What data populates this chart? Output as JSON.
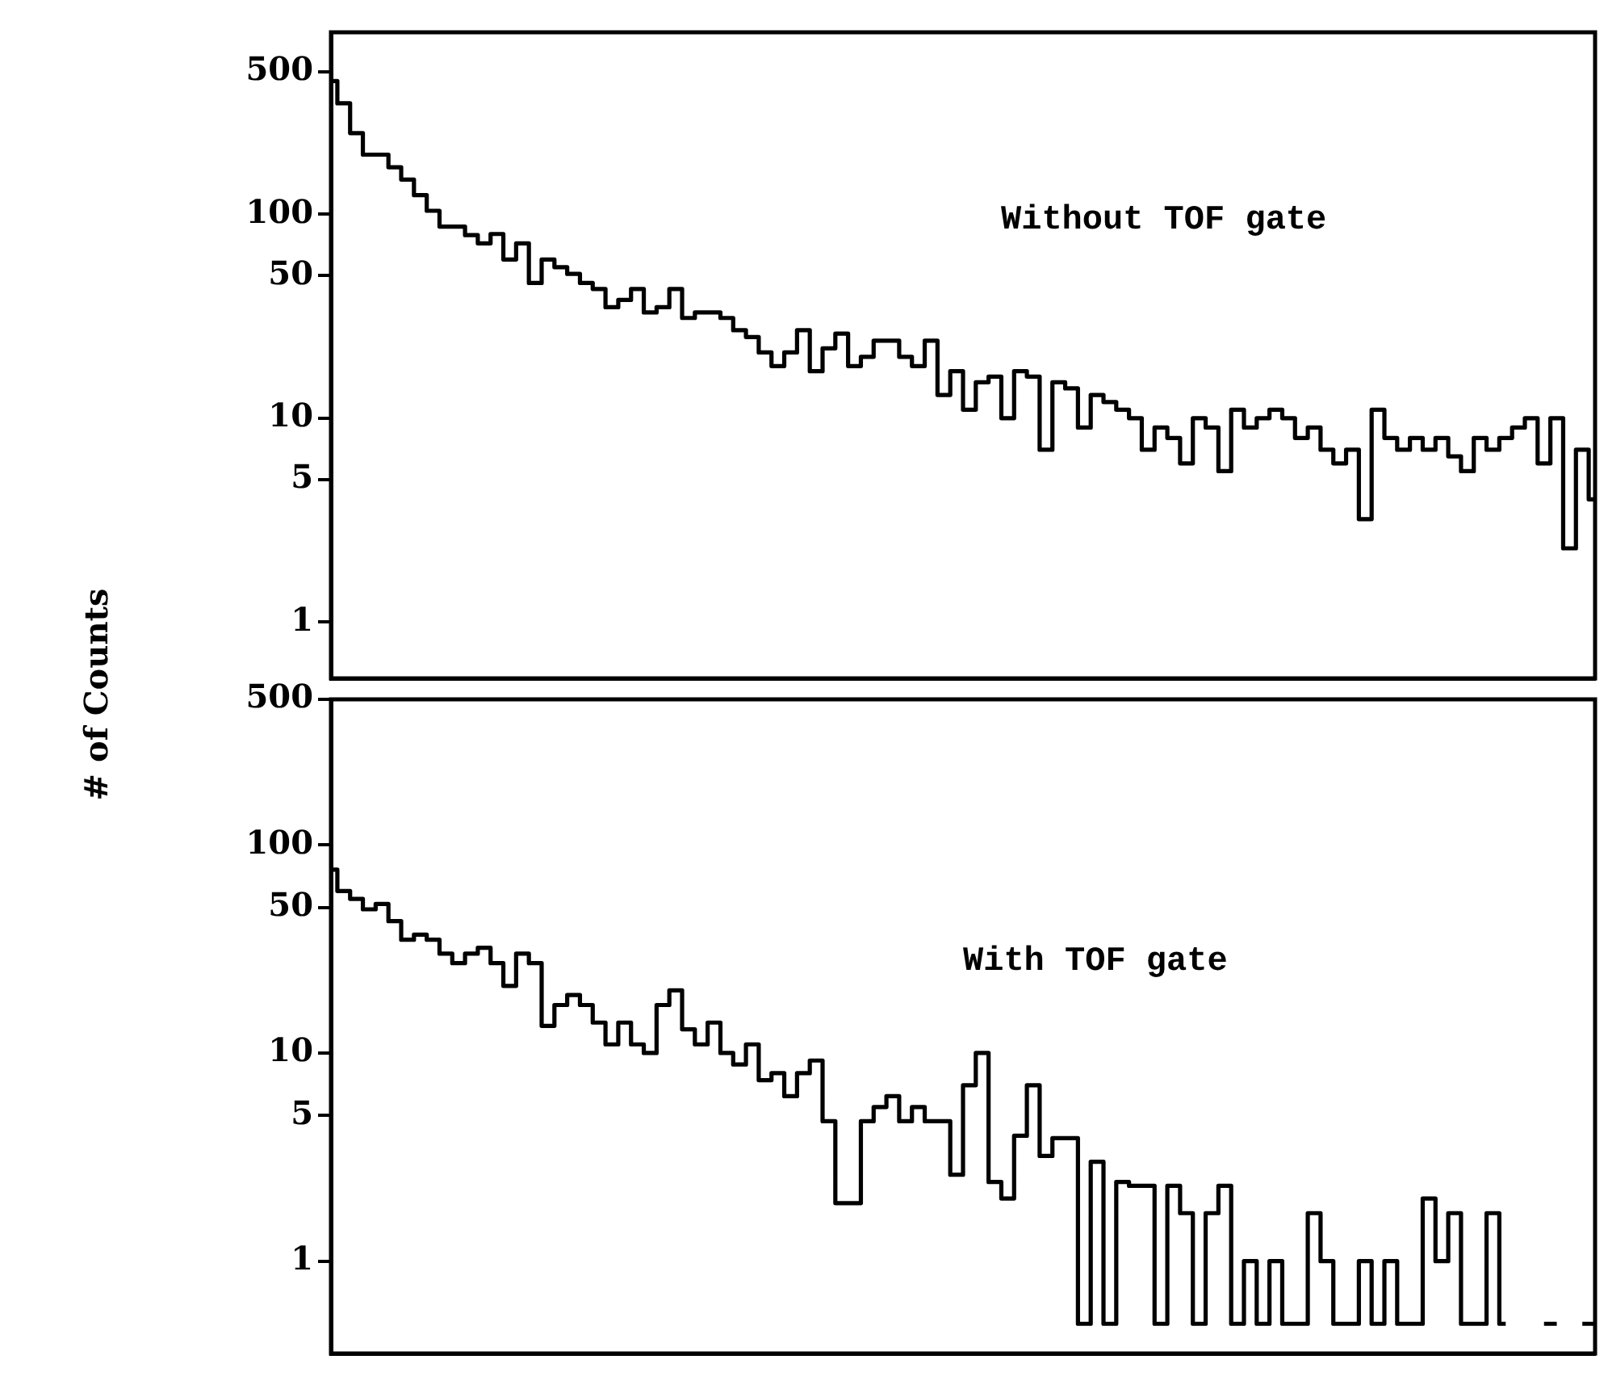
{
  "chart_data": [
    {
      "type": "step",
      "ylabel": "# of Counts",
      "annotations": [
        "Without TOF gate"
      ],
      "log": true,
      "grid": false,
      "legend": false,
      "tick_labels": "y",
      "ylim": [
        0.53,
        780
      ],
      "yticks": [
        1,
        5,
        10,
        50,
        100,
        500
      ],
      "categories": [
        null,
        null,
        null,
        null,
        null,
        null,
        null,
        null,
        null,
        null,
        null,
        null,
        null,
        null,
        null,
        null,
        null,
        null,
        null,
        null,
        null,
        null,
        null,
        null,
        null,
        null,
        null,
        null,
        null,
        null,
        null,
        null,
        null,
        null,
        null,
        null,
        null,
        null,
        null,
        null,
        null,
        null,
        null,
        null,
        null,
        null,
        null,
        null,
        null,
        null,
        null,
        null,
        null,
        null,
        null,
        null,
        null,
        null,
        null,
        null,
        null,
        null,
        null,
        null,
        null,
        null,
        null,
        null,
        null,
        null,
        null,
        null,
        null,
        null,
        null,
        null,
        null,
        null,
        null,
        null,
        null,
        null,
        null,
        null,
        null,
        null,
        null,
        null,
        null,
        null,
        null,
        null,
        null,
        null,
        null,
        null,
        null,
        null,
        null,
        null
      ],
      "series": [
        {
          "color": "#000000",
          "values": [
            450,
            350,
            250,
            196,
            196,
            170,
            148,
            124,
            104,
            87,
            87,
            79,
            72,
            80,
            60,
            72,
            46,
            60,
            55,
            51,
            46,
            43,
            35,
            38,
            43,
            33,
            35,
            43,
            31,
            33,
            33,
            31,
            27,
            25,
            21,
            18,
            21,
            27,
            17,
            22,
            26,
            18,
            20,
            24,
            24,
            20,
            18,
            24,
            13,
            17,
            11,
            15,
            16,
            10,
            17,
            16,
            7,
            15,
            14,
            9,
            13,
            12,
            11,
            10,
            7,
            9,
            8,
            6,
            10,
            9,
            5.5,
            11,
            9,
            10,
            11,
            10,
            8,
            9,
            7,
            6,
            7,
            3.2,
            11,
            8,
            7,
            8,
            7,
            8,
            6.5,
            5.5,
            8,
            7,
            8,
            9,
            10,
            6,
            10,
            2.3,
            7,
            4
          ]
        }
      ]
    },
    {
      "type": "step",
      "annotations": [
        "With TOF gate"
      ],
      "log": true,
      "grid": false,
      "legend": false,
      "tick_labels": "y",
      "ylim": [
        0.36,
        500
      ],
      "yticks": [
        1,
        5,
        10,
        50,
        100,
        500
      ],
      "categories": [
        null,
        null,
        null,
        null,
        null,
        null,
        null,
        null,
        null,
        null,
        null,
        null,
        null,
        null,
        null,
        null,
        null,
        null,
        null,
        null,
        null,
        null,
        null,
        null,
        null,
        null,
        null,
        null,
        null,
        null,
        null,
        null,
        null,
        null,
        null,
        null,
        null,
        null,
        null,
        null,
        null,
        null,
        null,
        null,
        null,
        null,
        null,
        null,
        null,
        null,
        null,
        null,
        null,
        null,
        null,
        null,
        null,
        null,
        null,
        null,
        null,
        null,
        null,
        null,
        null,
        null,
        null,
        null,
        null,
        null,
        null,
        null,
        null,
        null,
        null,
        null,
        null,
        null,
        null,
        null,
        null,
        null,
        null,
        null,
        null,
        null,
        null,
        null,
        null,
        null,
        null,
        null,
        null,
        null,
        null,
        null,
        null,
        null,
        null,
        null
      ],
      "series": [
        {
          "color": "#000000",
          "values": [
            76,
            60,
            55,
            49,
            52,
            43,
            35,
            37,
            35,
            30,
            27,
            30,
            32,
            27,
            21,
            30,
            27,
            13.5,
            17,
            19,
            17,
            14,
            11,
            14,
            11,
            10,
            17,
            20,
            13,
            11,
            14,
            10,
            8.8,
            11,
            7.4,
            8,
            6.2,
            8,
            9.2,
            4.7,
            1.9,
            1.9,
            4.7,
            5.5,
            6.2,
            4.7,
            5.5,
            4.7,
            4.7,
            2.6,
            7,
            10,
            2.4,
            2,
            4,
            7,
            3.2,
            3.9,
            3.9,
            0.5,
            3,
            0.5,
            2.4,
            2.3,
            2.3,
            0.5,
            2.3,
            1.7,
            0.5,
            1.7,
            2.3,
            0.5,
            1,
            0.5,
            1,
            0.5,
            0.5,
            1.7,
            1,
            0.5,
            0.5,
            1,
            0.5,
            1,
            0.5,
            0.5,
            2,
            1,
            1.7,
            0.5,
            0.5,
            1.7,
            0.5,
            null,
            null,
            0.5,
            0.5,
            null,
            0.5,
            0.5
          ]
        }
      ]
    }
  ]
}
